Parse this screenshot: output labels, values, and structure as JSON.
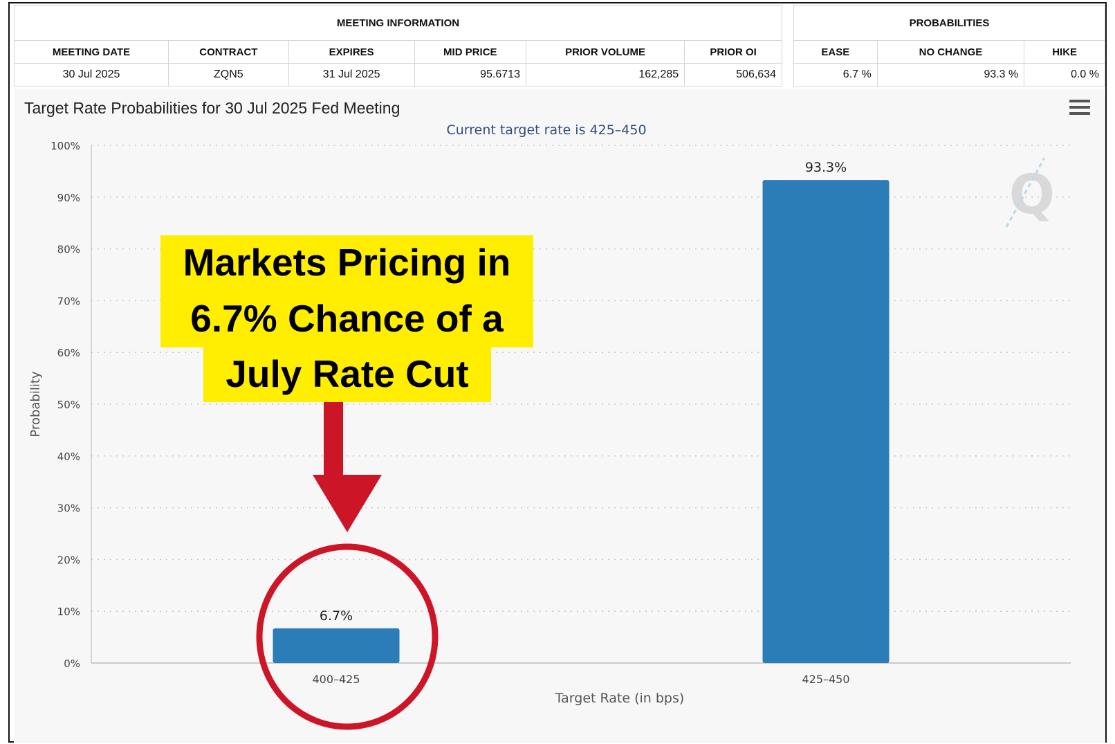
{
  "meeting_info": {
    "group_title": "MEETING INFORMATION",
    "headers": [
      "MEETING DATE",
      "CONTRACT",
      "EXPIRES",
      "MID PRICE",
      "PRIOR VOLUME",
      "PRIOR OI"
    ],
    "values": [
      "30 Jul 2025",
      "ZQN5",
      "31 Jul 2025",
      "95.6713",
      "162,285",
      "506,634"
    ]
  },
  "probabilities": {
    "group_title": "PROBABILITIES",
    "headers": [
      "EASE",
      "NO CHANGE",
      "HIKE"
    ],
    "values": [
      "6.7 %",
      "93.3 %",
      "0.0 %"
    ]
  },
  "chart_data": {
    "type": "bar",
    "title": "Target Rate Probabilities for 30 Jul 2025 Fed Meeting",
    "subtitle": "Current target rate is 425–450",
    "xlabel": "Target Rate (in bps)",
    "ylabel": "Probability",
    "categories": [
      "400–425",
      "425–450"
    ],
    "values": [
      6.7,
      93.3
    ],
    "data_labels": [
      "6.7%",
      "93.3%"
    ],
    "ylim": [
      0,
      100
    ],
    "yticks": [
      "0%",
      "10%",
      "20%",
      "30%",
      "40%",
      "50%",
      "60%",
      "70%",
      "80%",
      "90%",
      "100%"
    ],
    "grid": true,
    "bar_color": "#2b7db8"
  },
  "annotation": {
    "lines": [
      "Markets Pricing in",
      "6.7% Chance of a",
      "July Rate Cut"
    ],
    "box_color": "#ffee00",
    "arrow_color": "#cc1628"
  },
  "icons": {
    "menu": "hamburger-menu-icon",
    "watermark": "q-logo"
  }
}
